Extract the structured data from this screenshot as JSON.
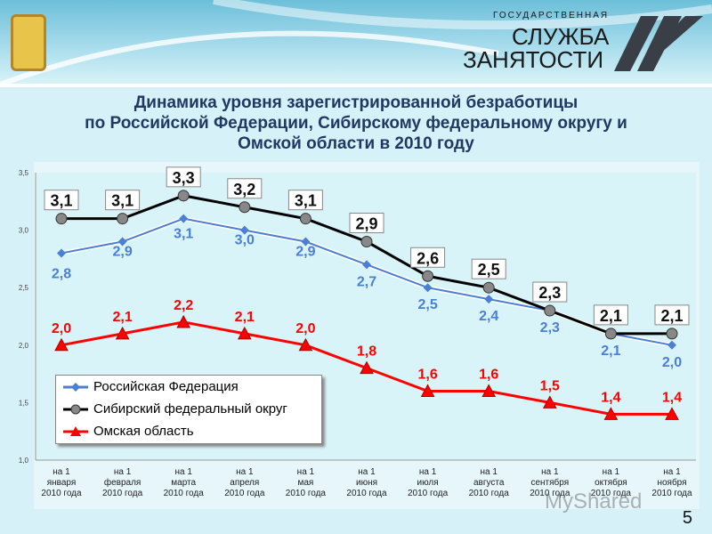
{
  "header": {
    "org_line1": "ГОСУДАРСТВЕННАЯ",
    "org_line2": "СЛУЖБА",
    "org_line3": "ЗАНЯТОСТИ"
  },
  "title": [
    "Динамика уровня зарегистрированной безработицы",
    "по Российской Федерации, Сибирскому федеральному округу и",
    "Омской области в 2010 году"
  ],
  "page_number": "5",
  "watermark": "MyShared",
  "chart_data": {
    "type": "line",
    "categories": [
      "на 1|января|2010 года",
      "на 1|февраля|2010 года",
      "на 1|марта|2010 года",
      "на 1|апреля|2010 года",
      "на 1|мая|2010 года",
      "на 1|июня|2010 года",
      "на 1|июля|2010 года",
      "на 1|августа|2010 года",
      "на 1|сентября|2010 года",
      "на 1|октября|2010 года",
      "на 1|ноября|2010 года"
    ],
    "ylim": [
      1.0,
      3.5
    ],
    "yticks": [
      "1,0",
      "1,5",
      "2,0",
      "2,5",
      "3,0",
      "3,5"
    ],
    "legend_position": "bottom-left",
    "series": [
      {
        "name": "Российская Федерация",
        "color": "#4a7fd4",
        "marker": "diamond",
        "values": [
          2.8,
          2.9,
          3.1,
          3.0,
          2.9,
          2.7,
          2.5,
          2.4,
          2.3,
          2.1,
          2.0
        ]
      },
      {
        "name": "Сибирский федеральный округ",
        "color": "#000000",
        "marker": "circle",
        "values": [
          3.1,
          3.1,
          3.3,
          3.2,
          3.1,
          2.9,
          2.6,
          2.5,
          2.3,
          2.1,
          2.1
        ]
      },
      {
        "name": "Омская область",
        "color": "#ff0000",
        "marker": "triangle",
        "values": [
          2.0,
          2.1,
          2.2,
          2.1,
          2.0,
          1.8,
          1.6,
          1.6,
          1.5,
          1.4,
          1.4
        ]
      }
    ]
  }
}
